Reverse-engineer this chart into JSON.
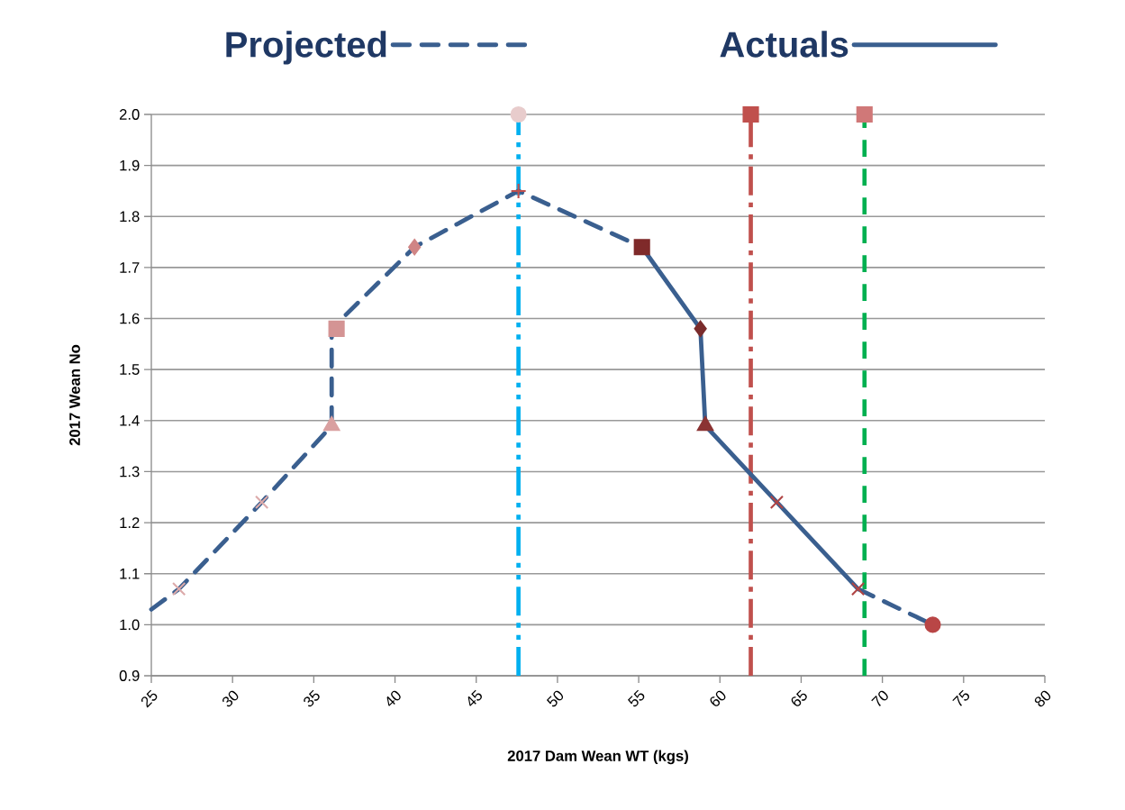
{
  "chart_data": {
    "type": "scatter",
    "xlabel": "2017 Dam Wean WT (kgs)",
    "ylabel": "2017 Wean No",
    "xlim": [
      25,
      80
    ],
    "xticks": [
      25,
      30,
      35,
      40,
      45,
      50,
      55,
      60,
      65,
      70,
      75,
      80
    ],
    "ylim": [
      0.9,
      2.0
    ],
    "yticks": [
      {
        "value": 0.9,
        "label": "0.9"
      },
      {
        "value": 1.0,
        "label": "1.0"
      },
      {
        "value": 1.1,
        "label": "1.1"
      },
      {
        "value": 1.2,
        "label": "1.2"
      },
      {
        "value": 1.3,
        "label": "1.3"
      },
      {
        "value": 1.4,
        "label": "1.4"
      },
      {
        "value": 1.5,
        "label": "1.5"
      },
      {
        "value": 1.6,
        "label": "1.6"
      },
      {
        "value": 1.7,
        "label": "1.7"
      },
      {
        "value": 1.8,
        "label": "1.8"
      },
      {
        "value": 1.9,
        "label": "1.9"
      },
      {
        "value": 2.0,
        "label": "2.0"
      }
    ],
    "grid": "y",
    "legend": "top",
    "ref_lines": [
      {
        "axis": "x",
        "value": 47.6,
        "color": "#00b0f0",
        "line_style": "dashdotdot"
      },
      {
        "axis": "x",
        "value": 61.9,
        "color": "#c0504d",
        "line_style": "dashdot"
      },
      {
        "axis": "x",
        "value": 68.9,
        "color": "#00b050",
        "line_style": "dashed"
      }
    ],
    "series": [
      {
        "name": "Projected",
        "type": "line",
        "line_style": "dashed",
        "marker": "none",
        "color": "#3a5f8f",
        "x": [
          25,
          26.7,
          31.8,
          36.1,
          36.1,
          41.2,
          47.6,
          55.2,
          null,
          68.5,
          73.1
        ],
        "values": [
          1.03,
          1.07,
          1.24,
          1.39,
          1.58,
          1.74,
          1.85,
          1.74,
          null,
          1.07,
          1.0
        ]
      },
      {
        "name": "Actuals",
        "type": "line",
        "line_style": "solid",
        "marker": "none",
        "color": "#3a5f8f",
        "x": [
          55.2,
          58.8,
          59.1,
          68.5
        ],
        "values": [
          1.74,
          1.58,
          1.39,
          1.07
        ]
      },
      {
        "marker": "cross",
        "color": "#dcaaaa",
        "x": [
          26.7,
          31.8
        ],
        "values": [
          1.07,
          1.24
        ]
      },
      {
        "marker": "triangle",
        "color": "#d9a0a0",
        "x": [
          36.1
        ],
        "values": [
          1.39
        ]
      },
      {
        "marker": "square",
        "color": "#d49494",
        "x": [
          36.4
        ],
        "values": [
          1.58
        ]
      },
      {
        "marker": "diamond",
        "color": "#d08585",
        "x": [
          41.2
        ],
        "values": [
          1.74
        ]
      },
      {
        "marker": "plus",
        "color": "#c0504d",
        "x": [
          47.6
        ],
        "values": [
          1.85
        ]
      },
      {
        "marker": "circle",
        "color": "#e8cccc",
        "x": [
          47.6
        ],
        "values": [
          2.0
        ]
      },
      {
        "marker": "square",
        "color": "#7f2a2a",
        "x": [
          55.2
        ],
        "values": [
          1.74
        ]
      },
      {
        "marker": "diamond",
        "color": "#7a2c2c",
        "x": [
          58.8
        ],
        "values": [
          1.58
        ]
      },
      {
        "marker": "triangle",
        "color": "#8b3333",
        "x": [
          59.1
        ],
        "values": [
          1.39
        ]
      },
      {
        "marker": "cross",
        "color": "#b04545",
        "x": [
          63.5,
          68.5
        ],
        "values": [
          1.24,
          1.07
        ]
      },
      {
        "marker": "circle",
        "color": "#b94646",
        "x": [
          73.1
        ],
        "values": [
          1.0
        ]
      },
      {
        "marker": "square",
        "color": "#c0504d",
        "x": [
          61.9
        ],
        "values": [
          2.0
        ]
      },
      {
        "marker": "square",
        "color": "#d07878",
        "x": [
          68.9
        ],
        "values": [
          2.0
        ]
      }
    ]
  }
}
